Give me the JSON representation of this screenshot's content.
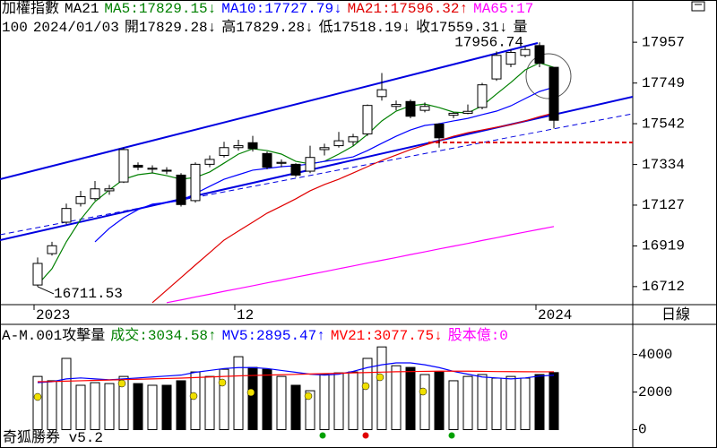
{
  "chart_data": [
    {
      "type": "candlestick",
      "title": "加權指數",
      "subtitle": "MA21",
      "info": [
        "100",
        "2024/01/03",
        "開17829.28↓",
        "高17829.28↓",
        "低17518.19↓",
        "收17559.31↓",
        "量"
      ],
      "period": "日線",
      "categories": [
        "2023",
        null,
        null,
        null,
        null,
        null,
        null,
        null,
        null,
        null,
        null,
        null,
        null,
        null,
        "12",
        null,
        null,
        null,
        null,
        null,
        null,
        null,
        null,
        null,
        null,
        null,
        null,
        null,
        null,
        null,
        null,
        null,
        null,
        null,
        null,
        "2024",
        null
      ],
      "open": [
        16720,
        16880,
        17040,
        17135,
        17160,
        17200,
        17245,
        17330,
        17310,
        17305,
        17280,
        17150,
        17335,
        17380,
        17420,
        17445,
        17390,
        17340,
        17335,
        17300,
        17410,
        17430,
        17450,
        17490,
        17680,
        17630,
        17655,
        17610,
        17540,
        17585,
        17595,
        17625,
        17770,
        17845,
        17890,
        17940,
        17829.28
      ],
      "high": [
        16860,
        16940,
        17135,
        17200,
        17250,
        17230,
        17420,
        17345,
        17330,
        17320,
        17290,
        17345,
        17380,
        17450,
        17460,
        17480,
        17400,
        17360,
        17340,
        17430,
        17440,
        17500,
        17490,
        17640,
        17800,
        17660,
        17665,
        17650,
        17545,
        17600,
        17640,
        17750,
        17910,
        17920,
        17935,
        17956.74,
        17829.28
      ],
      "low": [
        16711.53,
        16870,
        17030,
        17120,
        17150,
        17180,
        17240,
        17305,
        17290,
        17285,
        17120,
        17140,
        17320,
        17370,
        17405,
        17400,
        17310,
        17320,
        17270,
        17290,
        17380,
        17420,
        17430,
        17480,
        17660,
        17610,
        17570,
        17600,
        17420,
        17570,
        17590,
        17615,
        17760,
        17830,
        17880,
        17830,
        17518.19
      ],
      "close": [
        16830,
        16920,
        17110,
        17170,
        17210,
        17210,
        17410,
        17320,
        17315,
        17300,
        17130,
        17335,
        17360,
        17420,
        17430,
        17415,
        17320,
        17345,
        17280,
        17370,
        17420,
        17455,
        17475,
        17635,
        17715,
        17640,
        17580,
        17630,
        17470,
        17595,
        17605,
        17740,
        17890,
        17905,
        17920,
        17850,
        17559.31
      ],
      "series": [
        {
          "name": "MA5:17829.15↓",
          "color": "#008000",
          "values": [
            16721,
            16803,
            16940,
            17054,
            17145,
            17204,
            17259,
            17282,
            17291,
            17277,
            17259,
            17268,
            17296,
            17341,
            17387,
            17414,
            17405,
            17387,
            17350,
            17337,
            17350,
            17387,
            17428,
            17487,
            17556,
            17606,
            17633,
            17642,
            17624,
            17601,
            17597,
            17633,
            17693,
            17752,
            17816,
            17852,
            17829.15
          ]
        },
        {
          "name": "MA10:17727.79↓",
          "color": "#0000ff",
          "values": [
            null,
            null,
            null,
            null,
            16940,
            17009,
            17063,
            17104,
            17132,
            17141,
            17150,
            17186,
            17223,
            17259,
            17282,
            17305,
            17314,
            17323,
            17328,
            17337,
            17350,
            17360,
            17373,
            17405,
            17442,
            17478,
            17510,
            17533,
            17542,
            17556,
            17569,
            17588,
            17606,
            17633,
            17670,
            17706,
            17727.79
          ]
        },
        {
          "name": "MA21:17596.32↑",
          "color": "#e00000",
          "values": [
            null,
            null,
            null,
            null,
            null,
            null,
            null,
            null,
            16630,
            16694,
            16758,
            16822,
            16885,
            16949,
            16995,
            17040,
            17086,
            17122,
            17159,
            17200,
            17232,
            17259,
            17291,
            17323,
            17355,
            17382,
            17410,
            17433,
            17455,
            17478,
            17496,
            17510,
            17524,
            17537,
            17556,
            17578,
            17596.32
          ]
        },
        {
          "name": "MA65:17",
          "color": "#ff00ff",
          "values": [
            null,
            null,
            null,
            null,
            null,
            null,
            null,
            null,
            null,
            16630,
            16644,
            16659,
            16673,
            16688,
            16702,
            16716,
            16731,
            16745,
            16760,
            16774,
            16788,
            16803,
            16817,
            16832,
            16846,
            16860,
            16875,
            16889,
            16904,
            16918,
            16932,
            16947,
            16961,
            16976,
            16990,
            17004,
            17018
          ]
        }
      ],
      "ylim": [
        16620,
        18090
      ],
      "yticks": [
        17957,
        17749,
        17542,
        17334,
        17127,
        16919,
        16712
      ]
    },
    {
      "type": "bar",
      "title": "A-M.001攻擊量",
      "note": "股本億:0",
      "footer": "奇狐勝券 v5.2",
      "values_name": "成交:3034.58↑",
      "values_color": "#008000",
      "values": [
        2830,
        2600,
        3790,
        2360,
        2500,
        2450,
        2830,
        2450,
        2360,
        2360,
        2600,
        3070,
        2830,
        3210,
        3880,
        3310,
        3210,
        2830,
        2360,
        2070,
        2930,
        3020,
        3070,
        3790,
        4400,
        3400,
        3310,
        2930,
        3070,
        2600,
        2830,
        2930,
        2740,
        2830,
        2740,
        2930,
        3034.58
      ],
      "series": [
        {
          "name": "MV5:2895.47↑",
          "color": "#0000ff",
          "values": [
            2500,
            2550,
            2700,
            2750,
            2700,
            2650,
            2700,
            2750,
            2800,
            2850,
            2900,
            3050,
            3150,
            3250,
            3300,
            3300,
            3250,
            3150,
            3050,
            2950,
            2900,
            2950,
            3100,
            3300,
            3450,
            3550,
            3550,
            3450,
            3300,
            3100,
            2950,
            2800,
            2750,
            2700,
            2750,
            2850,
            2895.47
          ]
        },
        {
          "name": "MV21:3077.75↓",
          "color": "#ff0000",
          "values": [
            2550,
            2560,
            2580,
            2600,
            2620,
            2640,
            2660,
            2680,
            2700,
            2720,
            2740,
            2770,
            2800,
            2830,
            2860,
            2880,
            2900,
            2920,
            2940,
            2960,
            2980,
            3000,
            3020,
            3040,
            3060,
            3080,
            3090,
            3100,
            3110,
            3110,
            3110,
            3100,
            3090,
            3085,
            3080,
            3078,
            3077.75
          ]
        }
      ],
      "note_color": "#ff00ff",
      "ylim": [
        -500,
        5600
      ],
      "yticks": [
        4000,
        2000,
        0
      ]
    }
  ]
}
